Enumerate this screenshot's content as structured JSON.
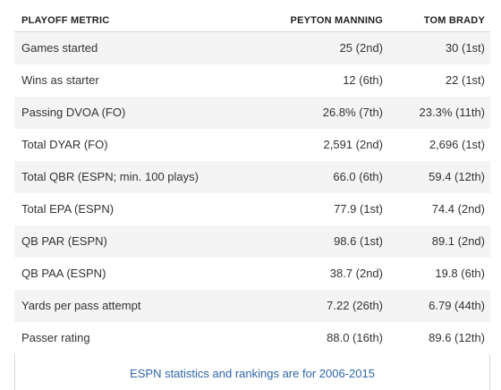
{
  "table": {
    "headers": {
      "metric": "PLAYOFF METRIC",
      "player1": "PEYTON MANNING",
      "player2": "TOM BRADY"
    },
    "rows": [
      {
        "metric": "Games started",
        "manning": "25 (2nd)",
        "brady": "30 (1st)"
      },
      {
        "metric": "Wins as starter",
        "manning": "12 (6th)",
        "brady": "22 (1st)"
      },
      {
        "metric": "Passing DVOA (FO)",
        "manning": "26.8% (7th)",
        "brady": "23.3% (11th)"
      },
      {
        "metric": "Total DYAR (FO)",
        "manning": "2,591 (2nd)",
        "brady": "2,696 (1st)"
      },
      {
        "metric": "Total QBR (ESPN; min. 100 plays)",
        "manning": "66.0 (6th)",
        "brady": "59.4 (12th)"
      },
      {
        "metric": "Total EPA (ESPN)",
        "manning": "77.9 (1st)",
        "brady": "74.4 (2nd)"
      },
      {
        "metric": "QB PAR (ESPN)",
        "manning": "98.6 (1st)",
        "brady": "89.1 (2nd)"
      },
      {
        "metric": "QB PAA (ESPN)",
        "manning": "38.7 (2nd)",
        "brady": "19.8 (6th)"
      },
      {
        "metric": "Yards per pass attempt",
        "manning": "7.22 (26th)",
        "brady": "6.79 (44th)"
      },
      {
        "metric": "Passer rating",
        "manning": "88.0 (16th)",
        "brady": "89.6 (12th)"
      }
    ]
  },
  "footer": {
    "note": "ESPN statistics and rankings are for 2006-2015"
  },
  "colors": {
    "accent": "#2f66a8",
    "stripe": "#f4f4f4",
    "border": "#d8d8d8"
  }
}
